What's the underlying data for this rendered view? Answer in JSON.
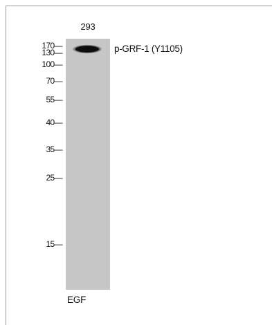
{
  "lane": {
    "label": "293"
  },
  "markers": [
    {
      "id": "m170",
      "label": "170—"
    },
    {
      "id": "m130",
      "label": "130—"
    },
    {
      "id": "m100",
      "label": "100—"
    },
    {
      "id": "m70",
      "label": "70—"
    },
    {
      "id": "m55",
      "label": "55—"
    },
    {
      "id": "m40",
      "label": "40—"
    },
    {
      "id": "m35",
      "label": "35—"
    },
    {
      "id": "m25",
      "label": "25—"
    },
    {
      "id": "m15",
      "label": "15—"
    }
  ],
  "band": {
    "label": "p-GRF-1 (Y1105)"
  },
  "treatment": {
    "label": "EGF"
  },
  "colors": {
    "lane_background": "#c6c6c6",
    "band": "#0c0c0c",
    "frame": "#9a9a9a"
  }
}
